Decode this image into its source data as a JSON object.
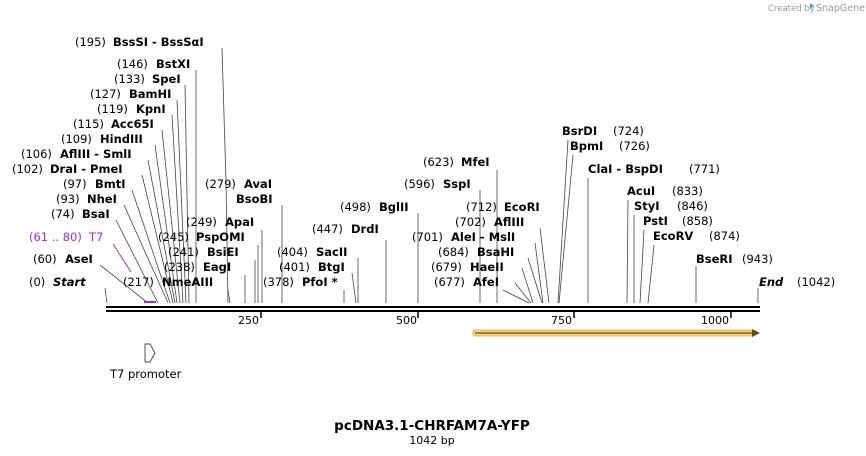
{
  "credit": {
    "prefix": "Created by",
    "brand": "SnapGene"
  },
  "map": {
    "name": "pcDNA3.1-CHRFAM7A-YFP",
    "length_label": "1042 bp",
    "length": 1042,
    "ticks": [
      {
        "pos": 250,
        "label": "250"
      },
      {
        "pos": 500,
        "label": "500"
      },
      {
        "pos": 750,
        "label": "750"
      },
      {
        "pos": 1000,
        "label": "1000"
      }
    ],
    "features": {
      "t7_promoter": {
        "label": "T7 promoter",
        "start": 61,
        "end": 80
      },
      "orange_arrow": {
        "start": 592,
        "end": 1042,
        "color": "#f4b942"
      }
    },
    "primer": {
      "range": "(61 .. 80)",
      "name": "T7",
      "start": 61,
      "end": 80
    },
    "sites_left": [
      {
        "pos": "(195)",
        "name": "BssSI  - BssSαI",
        "bp": 195
      },
      {
        "pos": "(146)",
        "name": "BstXI",
        "bp": 146
      },
      {
        "pos": "(133)",
        "name": "SpeI",
        "bp": 133
      },
      {
        "pos": "(127)",
        "name": "BamHI",
        "bp": 127
      },
      {
        "pos": "(119)",
        "name": "KpnI",
        "bp": 119
      },
      {
        "pos": "(115)",
        "name": "Acc65I",
        "bp": 115
      },
      {
        "pos": "(109)",
        "name": "HindIII",
        "bp": 109
      },
      {
        "pos": "(106)",
        "name": "AflIII  - SmlI",
        "bp": 106
      },
      {
        "pos": "(102)",
        "name": "DraI  - PmeI",
        "bp": 102
      },
      {
        "pos": "(97)",
        "name": "BmtI",
        "bp": 97
      },
      {
        "pos": "(93)",
        "name": "NheI",
        "bp": 93
      },
      {
        "pos": "(74)",
        "name": "BsaI",
        "bp": 74
      },
      {
        "pos": "(60)",
        "name": "AseI",
        "bp": 60
      },
      {
        "pos": "(0)",
        "name": "Start",
        "bp": 0
      }
    ],
    "sites_mid": [
      {
        "pos": "(279)",
        "name": "AvaI",
        "bp": 279
      },
      {
        "pos": "",
        "name": "BsoBI",
        "bp": 279
      },
      {
        "pos": "(249)",
        "name": "ApaI",
        "bp": 249
      },
      {
        "pos": "(245)",
        "name": "PspOMI",
        "bp": 245
      },
      {
        "pos": "(241)",
        "name": "BsiEI",
        "bp": 241
      },
      {
        "pos": "(238)",
        "name": "EagI",
        "bp": 238
      },
      {
        "pos": "(217)",
        "name": "NmeAIII",
        "bp": 217
      },
      {
        "pos": "(404)",
        "name": "SacII",
        "bp": 404
      },
      {
        "pos": "(401)",
        "name": "BtgI",
        "bp": 401
      },
      {
        "pos": "(378)",
        "name": "PfoI *",
        "bp": 378
      },
      {
        "pos": "(447)",
        "name": "DrdI",
        "bp": 447
      },
      {
        "pos": "(498)",
        "name": "BglII",
        "bp": 498
      }
    ],
    "sites_center": [
      {
        "pos": "(623)",
        "name": "MfeI",
        "bp": 623
      },
      {
        "pos": "(596)",
        "name": "SspI",
        "bp": 596
      },
      {
        "pos": "(712)",
        "name": "EcoRI",
        "bp": 712
      },
      {
        "pos": "(702)",
        "name": "AflIII",
        "bp": 702
      },
      {
        "pos": "(701)",
        "name": "AleI  - MslI",
        "bp": 701
      },
      {
        "pos": "(684)",
        "name": "BsaHI",
        "bp": 684
      },
      {
        "pos": "(679)",
        "name": "HaeII",
        "bp": 679
      },
      {
        "pos": "(677)",
        "name": "AfeI",
        "bp": 677
      }
    ],
    "sites_right": [
      {
        "pos": "(724)",
        "name": "BsrDI",
        "bp": 724
      },
      {
        "pos": "(726)",
        "name": "BpmI",
        "bp": 726
      },
      {
        "pos": "(771)",
        "name": "ClaI  - BspDI",
        "bp": 771
      },
      {
        "pos": "(833)",
        "name": "AcuI",
        "bp": 833
      },
      {
        "pos": "(846)",
        "name": "StyI",
        "bp": 846
      },
      {
        "pos": "(858)",
        "name": "PstI",
        "bp": 858
      },
      {
        "pos": "(874)",
        "name": "EcoRV",
        "bp": 874
      },
      {
        "pos": "(943)",
        "name": "BseRI",
        "bp": 943
      },
      {
        "pos": "(1042)",
        "name": "End",
        "bp": 1042
      }
    ]
  }
}
